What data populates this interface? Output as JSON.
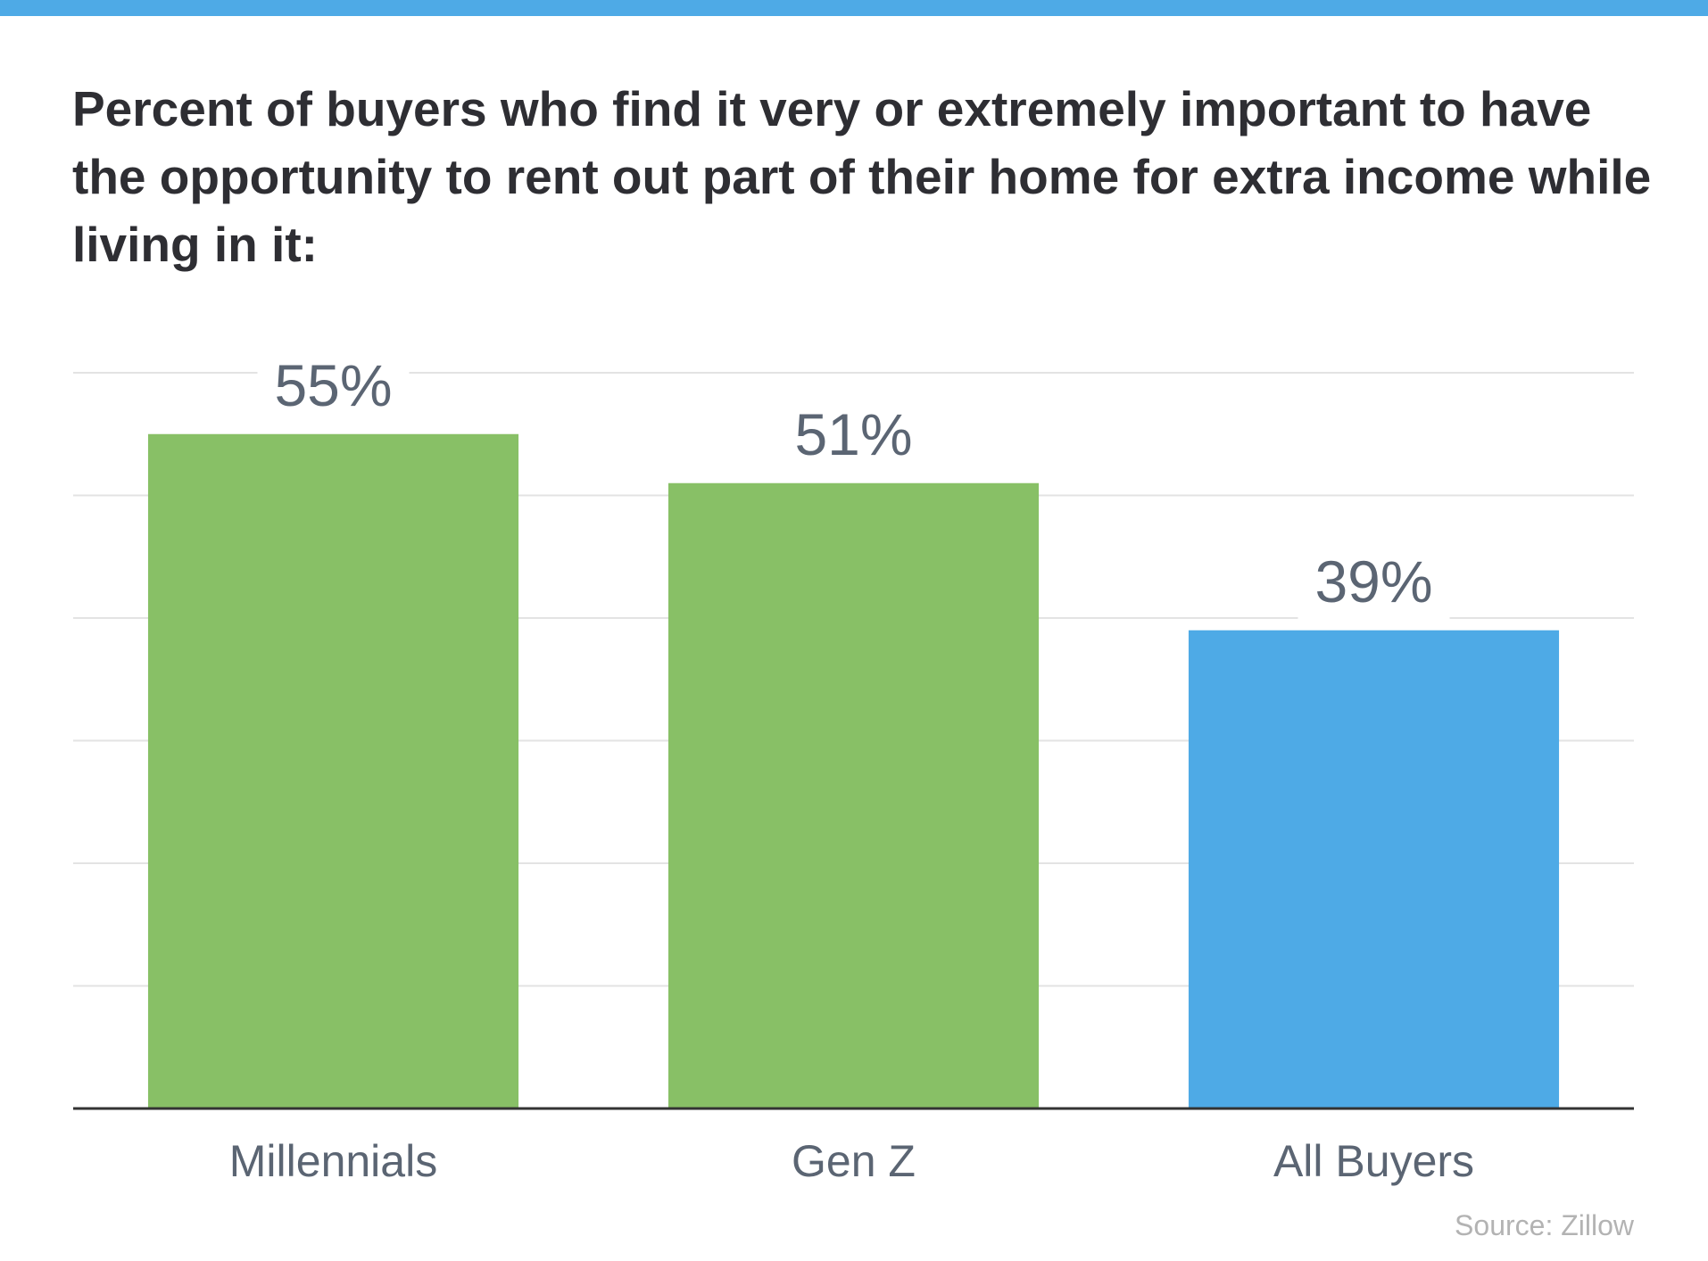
{
  "chart_data": {
    "type": "bar",
    "title": "Percent of buyers who find it very or extremely important to have the opportunity to rent out part of their home for extra income while living in it:",
    "categories": [
      "Millennials",
      "Gen Z",
      "All Buyers"
    ],
    "values": [
      55,
      51,
      39
    ],
    "value_labels": [
      "55%",
      "51%",
      "39%"
    ],
    "colors": [
      "#88c066",
      "#88c066",
      "#4eaae6"
    ],
    "ylim": [
      0,
      60
    ],
    "yticks": [
      0,
      10,
      20,
      30,
      40,
      50,
      60
    ],
    "grid": true,
    "source": "Source: Zillow"
  }
}
